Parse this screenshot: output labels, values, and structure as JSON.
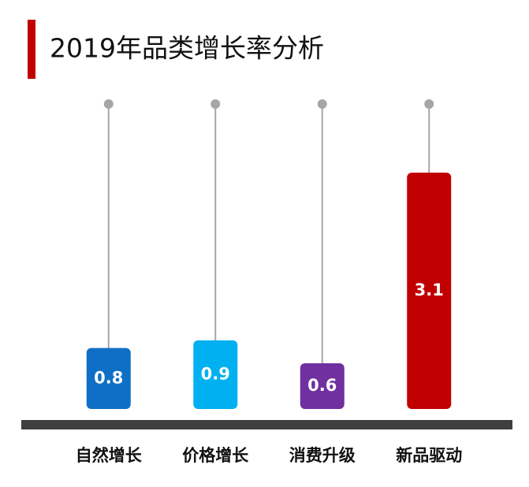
{
  "chart_data": {
    "type": "bar",
    "title": "2019年品类增长率分析",
    "categories": [
      "自然增长",
      "价格增长",
      "消费升级",
      "新品驱动"
    ],
    "values": [
      0.8,
      0.9,
      0.6,
      3.1
    ],
    "colors": [
      "#0f6fc6",
      "#00b0f0",
      "#7030a0",
      "#c00000"
    ],
    "ylim": [
      0,
      4
    ]
  }
}
